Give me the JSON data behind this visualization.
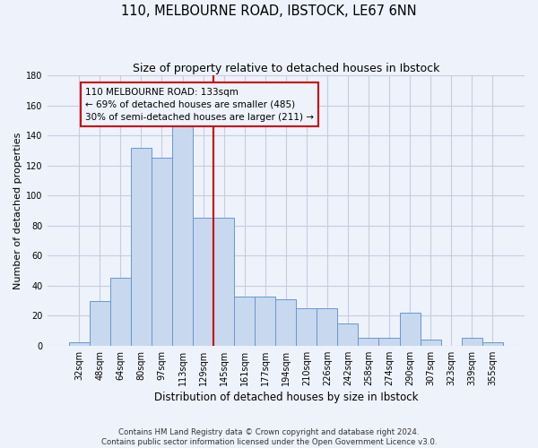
{
  "title": "110, MELBOURNE ROAD, IBSTOCK, LE67 6NN",
  "subtitle": "Size of property relative to detached houses in Ibstock",
  "xlabel": "Distribution of detached houses by size in Ibstock",
  "ylabel": "Number of detached properties",
  "categories": [
    "32sqm",
    "48sqm",
    "64sqm",
    "80sqm",
    "97sqm",
    "113sqm",
    "129sqm",
    "145sqm",
    "161sqm",
    "177sqm",
    "194sqm",
    "210sqm",
    "226sqm",
    "242sqm",
    "258sqm",
    "274sqm",
    "290sqm",
    "307sqm",
    "323sqm",
    "339sqm",
    "355sqm"
  ],
  "values": [
    2,
    30,
    45,
    132,
    125,
    148,
    85,
    85,
    33,
    33,
    31,
    25,
    25,
    15,
    5,
    5,
    22,
    4,
    0,
    5,
    2
  ],
  "bar_color": "#c8d8ef",
  "bar_edge_color": "#6699cc",
  "reference_line_color": "#cc0000",
  "reference_line_x": 6.5,
  "annotation_text": "110 MELBOURNE ROAD: 133sqm\n← 69% of detached houses are smaller (485)\n30% of semi-detached houses are larger (211) →",
  "annotation_box_color": "#cc0000",
  "ylim": [
    0,
    180
  ],
  "yticks": [
    0,
    20,
    40,
    60,
    80,
    100,
    120,
    140,
    160,
    180
  ],
  "grid_color": "#c8cce0",
  "bg_color": "#eef2fb",
  "footer_text": "Contains HM Land Registry data © Crown copyright and database right 2024.\nContains public sector information licensed under the Open Government Licence v3.0.",
  "title_fontsize": 10.5,
  "subtitle_fontsize": 9,
  "ylabel_fontsize": 8,
  "xlabel_fontsize": 8.5,
  "tick_fontsize": 7,
  "annotation_fontsize": 7.5,
  "footer_fontsize": 6.2
}
